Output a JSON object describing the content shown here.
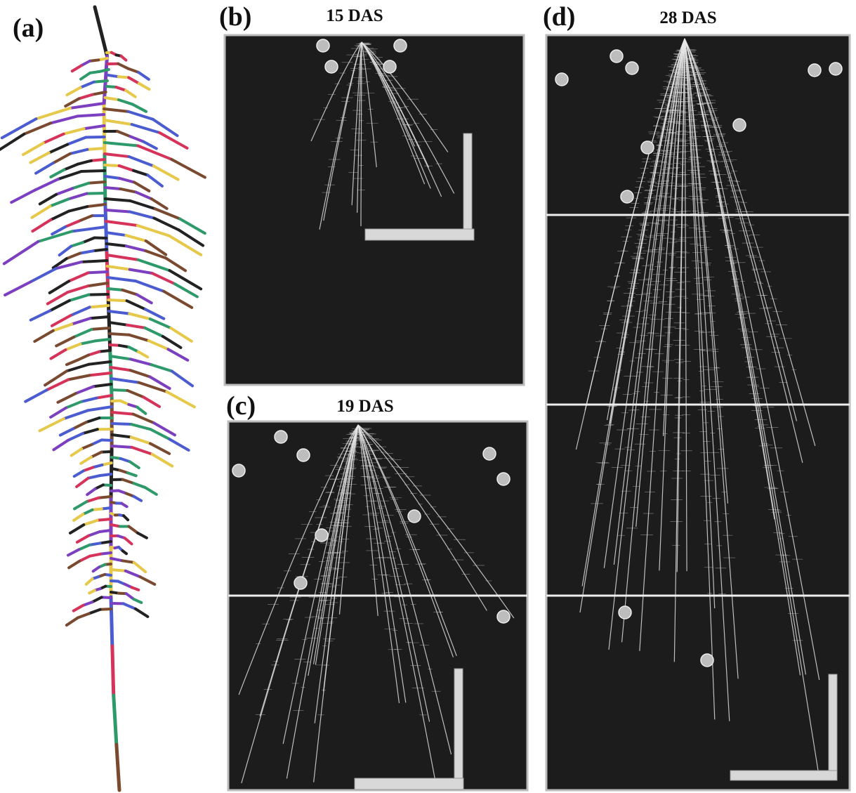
{
  "panels": [
    {
      "label": "(a)"
    },
    {
      "label": "(b)",
      "title": "15 DAS"
    },
    {
      "label": "(c)",
      "title": "19 DAS"
    },
    {
      "label": "(d)",
      "title": "28 DAS"
    }
  ]
}
